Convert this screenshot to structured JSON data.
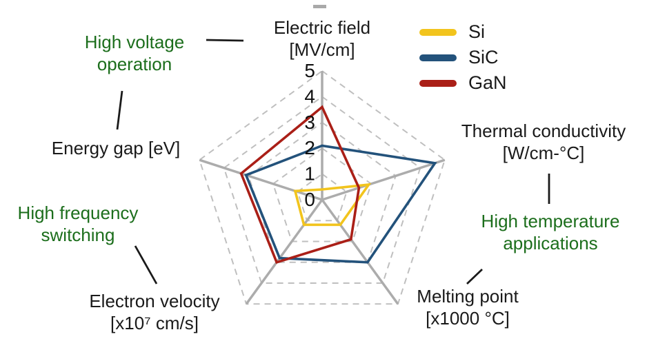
{
  "chart_data": {
    "type": "radar",
    "axes": [
      {
        "label": "Electric field",
        "unit": "[MV/cm]"
      },
      {
        "label": "Thermal conductivity",
        "unit": "[W/cm-°C]"
      },
      {
        "label": "Melting point",
        "unit": "[x1000 °C]"
      },
      {
        "label": "Electron velocity",
        "unit": "[x10⁷ cm/s]"
      },
      {
        "label": "Energy gap [eV]",
        "unit": ""
      }
    ],
    "series": [
      {
        "name": "Si",
        "color": "#F2C41D",
        "values": [
          0.4,
          1.9,
          1.2,
          1.2,
          1.1
        ]
      },
      {
        "name": "SiC",
        "color": "#23527B",
        "values": [
          2.1,
          4.6,
          3.0,
          2.8,
          3.1
        ]
      },
      {
        "name": "GaN",
        "color": "#AA1F17",
        "values": [
          3.6,
          1.5,
          1.9,
          3.0,
          3.3
        ]
      }
    ],
    "ticks": [
      0,
      1,
      2,
      3,
      4,
      5
    ],
    "rmax": 5,
    "grid": "dashed concentric pentagons with solid gray spokes",
    "legend_position": "top-right"
  },
  "annotations": {
    "high_voltage": {
      "line1": "High voltage",
      "line2": "operation"
    },
    "high_temperature": {
      "line1": "High temperature",
      "line2": "applications"
    },
    "high_frequency": {
      "line1": "High frequency",
      "line2": "switching"
    }
  },
  "colors": {
    "annotation_green": "#1C6E1C",
    "spoke_gray": "#ACACAC",
    "ring_gray": "#BFBFBF",
    "text_black": "#1a1a1a",
    "background": "#ffffff"
  }
}
